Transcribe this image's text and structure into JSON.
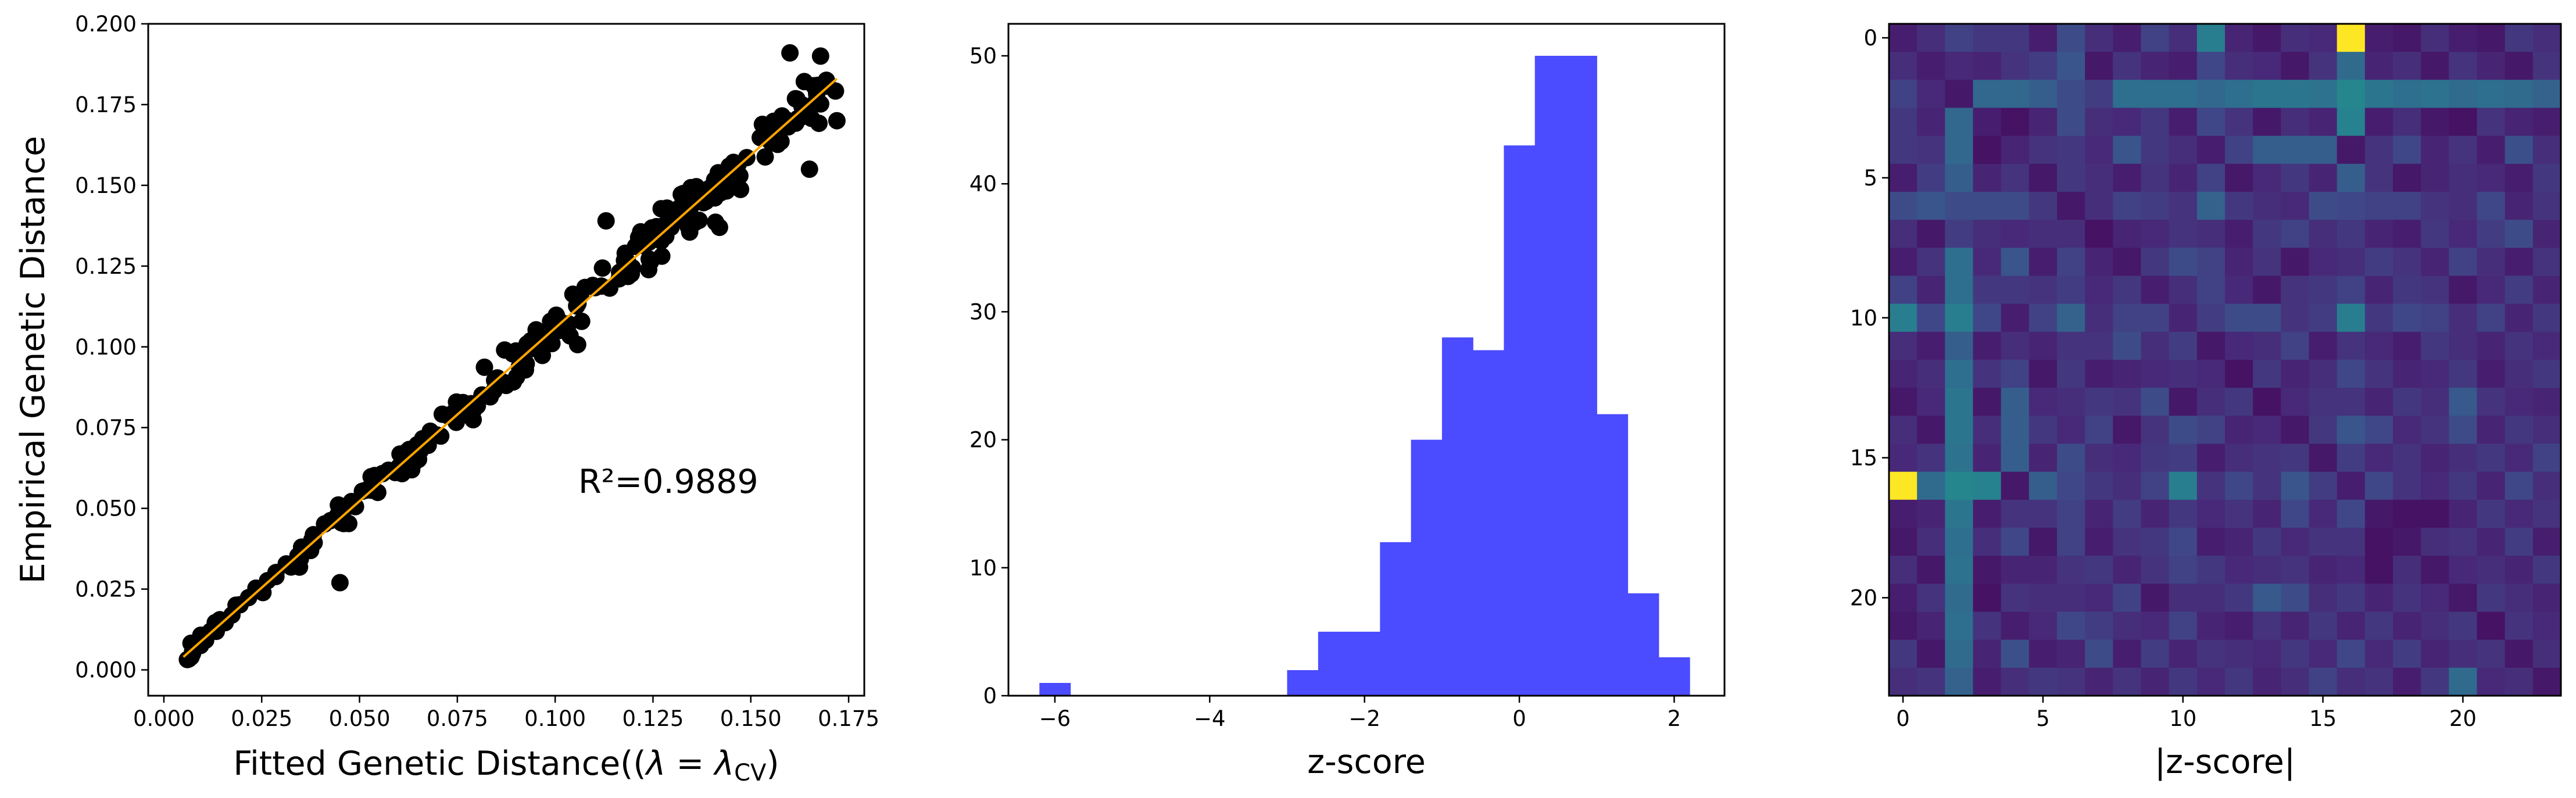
{
  "chart_data": [
    {
      "type": "scatter",
      "xlabel": "Fitted Genetic Distance((λ = λ_CV)",
      "xlabel_parts": {
        "prefix": "Fitted Genetic Distance((",
        "lambda": "λ",
        "eq": " = ",
        "lambda2": "λ",
        "sub": "CV",
        "suffix": ")"
      },
      "ylabel": "Empirical Genetic Distance",
      "xlim": [
        -0.004,
        0.179
      ],
      "ylim": [
        -0.008,
        0.2
      ],
      "xticks": [
        0.0,
        0.025,
        0.05,
        0.075,
        0.1,
        0.125,
        0.15,
        0.175
      ],
      "xtick_labels": [
        "0.000",
        "0.025",
        "0.050",
        "0.075",
        "0.100",
        "0.125",
        "0.150",
        "0.175"
      ],
      "yticks": [
        0.0,
        0.025,
        0.05,
        0.075,
        0.1,
        0.125,
        0.15,
        0.175,
        0.2
      ],
      "ytick_labels": [
        "0.000",
        "0.025",
        "0.050",
        "0.075",
        "0.100",
        "0.125",
        "0.150",
        "0.175",
        "0.200"
      ],
      "annotation": "R²=0.9889",
      "fit_line": {
        "x": [
          0.005,
          0.172
        ],
        "y": [
          0.004,
          0.183
        ],
        "color": "#ffa500"
      },
      "point_color": "#000000",
      "n_points": 276
    },
    {
      "type": "bar",
      "subtype": "histogram",
      "xlabel": "z-score",
      "ylabel": "",
      "bin_edges": [
        -6.2,
        -5.8,
        -5.4,
        -5.0,
        -4.6,
        -4.2,
        -3.8,
        -3.4,
        -3.0,
        -2.6,
        -2.2,
        -1.8,
        -1.4,
        -1.0,
        -0.6,
        -0.2,
        0.2,
        0.6,
        1.0,
        1.4,
        1.8,
        2.2
      ],
      "values": [
        1,
        0,
        0,
        0,
        0,
        0,
        0,
        0,
        2,
        5,
        5,
        12,
        20,
        28,
        27,
        43,
        50,
        50,
        22,
        8,
        3
      ],
      "xlim": [
        -6.6,
        2.65
      ],
      "ylim": [
        0,
        52.5
      ],
      "xticks": [
        -6,
        -4,
        -2,
        0,
        2
      ],
      "xtick_labels": [
        "−6",
        "−4",
        "−2",
        "0",
        "2"
      ],
      "yticks": [
        0,
        10,
        20,
        30,
        40,
        50
      ],
      "ytick_labels": [
        "0",
        "10",
        "20",
        "30",
        "40",
        "50"
      ],
      "bar_color": "#4b4bff"
    },
    {
      "type": "heatmap",
      "xlabel": "|z-score|",
      "rows": 24,
      "cols": 24,
      "colormap": "viridis",
      "vmin": 0,
      "vmax": 6.1,
      "xticks": [
        0,
        5,
        10,
        15,
        20
      ],
      "xtick_labels": [
        "0",
        "5",
        "10",
        "15",
        "20"
      ],
      "yticks": [
        0,
        5,
        10,
        15,
        20
      ],
      "ytick_labels": [
        "0",
        "5",
        "10",
        "15",
        "20"
      ],
      "matrix": [
        [
          0.5,
          0.8,
          1.2,
          1.0,
          1.0,
          0.5,
          1.4,
          0.8,
          0.5,
          1.2,
          0.8,
          2.6,
          0.6,
          0.4,
          0.8,
          0.7,
          6.1,
          0.5,
          0.4,
          0.8,
          0.5,
          0.4,
          1.0,
          0.8
        ],
        [
          0.8,
          0.5,
          0.7,
          0.6,
          0.9,
          1.1,
          1.6,
          0.4,
          0.9,
          0.6,
          0.5,
          1.3,
          0.8,
          0.7,
          0.4,
          0.9,
          2.1,
          0.6,
          0.8,
          0.4,
          0.9,
          0.6,
          0.4,
          0.9
        ],
        [
          1.2,
          0.7,
          0.4,
          2.0,
          2.0,
          1.8,
          1.4,
          1.1,
          2.2,
          2.2,
          2.2,
          2.0,
          2.2,
          2.4,
          2.4,
          2.3,
          2.8,
          2.4,
          2.2,
          2.3,
          2.1,
          2.2,
          2.1,
          1.9
        ],
        [
          1.0,
          0.6,
          2.0,
          0.5,
          0.3,
          0.6,
          1.4,
          0.8,
          0.7,
          1.0,
          0.5,
          1.3,
          0.9,
          0.4,
          0.8,
          0.6,
          2.7,
          0.5,
          0.8,
          0.4,
          0.3,
          0.9,
          0.6,
          0.5
        ],
        [
          1.0,
          0.9,
          2.0,
          0.3,
          0.6,
          0.9,
          1.0,
          0.7,
          1.6,
          1.0,
          0.8,
          0.5,
          1.2,
          1.8,
          1.8,
          1.8,
          0.4,
          0.9,
          1.3,
          0.6,
          0.9,
          0.5,
          1.5,
          0.8
        ],
        [
          0.5,
          1.1,
          1.8,
          0.6,
          0.9,
          0.4,
          1.0,
          0.8,
          0.5,
          0.9,
          0.6,
          1.2,
          0.4,
          0.7,
          1.0,
          0.6,
          1.8,
          0.9,
          0.4,
          0.6,
          0.8,
          0.7,
          0.5,
          1.0
        ],
        [
          1.4,
          1.6,
          1.4,
          1.4,
          1.4,
          1.0,
          0.4,
          0.8,
          1.2,
          1.1,
          0.9,
          1.9,
          1.0,
          0.8,
          0.7,
          1.4,
          1.3,
          1.2,
          1.2,
          0.9,
          0.8,
          1.3,
          0.6,
          0.9
        ],
        [
          0.8,
          0.4,
          1.1,
          0.8,
          0.7,
          0.8,
          0.8,
          0.3,
          0.6,
          0.7,
          0.9,
          0.8,
          0.5,
          1.0,
          1.2,
          0.8,
          1.0,
          0.6,
          0.5,
          1.0,
          0.7,
          1.1,
          1.4,
          0.6
        ],
        [
          0.5,
          0.9,
          2.2,
          0.7,
          1.6,
          0.5,
          1.2,
          0.6,
          0.4,
          1.0,
          1.4,
          1.2,
          0.6,
          0.9,
          0.4,
          0.7,
          0.8,
          1.1,
          0.9,
          0.6,
          1.2,
          0.8,
          0.5,
          0.9
        ],
        [
          1.2,
          0.6,
          2.2,
          1.0,
          1.0,
          0.9,
          1.1,
          0.7,
          1.0,
          0.5,
          0.8,
          1.2,
          0.7,
          0.4,
          0.9,
          1.0,
          1.2,
          0.6,
          1.0,
          0.9,
          0.4,
          0.7,
          1.1,
          0.6
        ],
        [
          2.6,
          1.3,
          2.6,
          1.3,
          0.5,
          1.2,
          1.9,
          0.8,
          1.2,
          1.2,
          0.6,
          1.1,
          1.4,
          1.4,
          0.9,
          1.1,
          2.6,
          1.0,
          1.3,
          1.2,
          0.8,
          1.2,
          0.6,
          1.0
        ],
        [
          0.8,
          0.5,
          1.8,
          0.5,
          0.8,
          0.6,
          0.9,
          0.9,
          1.4,
          0.8,
          1.1,
          0.4,
          0.7,
          0.8,
          1.2,
          0.5,
          0.9,
          0.7,
          0.5,
          1.0,
          0.8,
          0.6,
          0.9,
          0.7
        ],
        [
          0.6,
          0.8,
          2.2,
          0.9,
          1.2,
          0.4,
          1.0,
          0.5,
          0.6,
          0.7,
          0.8,
          0.7,
          0.3,
          1.0,
          0.6,
          0.8,
          1.3,
          0.9,
          0.6,
          0.7,
          1.0,
          0.5,
          0.8,
          1.0
        ],
        [
          0.4,
          0.7,
          2.4,
          0.4,
          1.8,
          0.7,
          0.8,
          1.0,
          0.9,
          1.4,
          0.4,
          0.8,
          1.0,
          0.3,
          0.7,
          0.9,
          0.9,
          0.6,
          1.0,
          0.8,
          1.7,
          0.9,
          0.7,
          0.6
        ],
        [
          0.8,
          0.4,
          2.4,
          0.8,
          1.8,
          1.0,
          0.7,
          1.2,
          0.4,
          0.9,
          1.4,
          1.2,
          0.6,
          0.7,
          0.4,
          1.0,
          1.6,
          1.3,
          0.7,
          0.9,
          1.4,
          0.6,
          1.0,
          0.8
        ],
        [
          0.7,
          0.9,
          2.3,
          0.6,
          1.8,
          0.6,
          1.4,
          0.8,
          0.7,
          1.0,
          1.1,
          0.5,
          0.8,
          0.9,
          1.0,
          0.4,
          1.1,
          0.7,
          0.9,
          0.6,
          0.8,
          1.0,
          0.7,
          1.2
        ],
        [
          6.1,
          2.1,
          2.8,
          2.7,
          0.4,
          1.8,
          1.3,
          1.0,
          0.8,
          1.2,
          2.6,
          0.9,
          1.3,
          0.9,
          1.6,
          1.1,
          0.5,
          1.3,
          0.9,
          0.7,
          1.0,
          0.6,
          1.3,
          0.8
        ],
        [
          0.5,
          0.6,
          2.4,
          0.5,
          0.9,
          0.9,
          1.2,
          0.6,
          1.1,
          0.6,
          1.0,
          0.7,
          0.9,
          0.6,
          1.3,
          0.7,
          1.3,
          0.4,
          0.3,
          0.3,
          0.6,
          1.0,
          0.7,
          0.9
        ],
        [
          0.4,
          0.8,
          2.2,
          0.8,
          1.3,
          0.4,
          1.2,
          0.5,
          0.9,
          1.0,
          1.3,
          0.5,
          0.6,
          1.0,
          0.7,
          0.9,
          0.9,
          0.3,
          0.4,
          0.8,
          0.9,
          0.6,
          1.1,
          0.5
        ],
        [
          0.8,
          0.4,
          2.3,
          0.4,
          0.6,
          0.6,
          0.9,
          1.0,
          0.6,
          0.9,
          1.2,
          1.0,
          0.7,
          0.8,
          0.9,
          0.6,
          0.7,
          0.3,
          0.8,
          0.4,
          0.7,
          0.8,
          0.6,
          1.0
        ],
        [
          0.5,
          0.9,
          2.1,
          0.3,
          0.9,
          0.8,
          0.8,
          0.7,
          1.2,
          0.4,
          0.8,
          0.8,
          1.0,
          1.7,
          1.4,
          0.8,
          1.0,
          0.6,
          0.9,
          0.7,
          0.4,
          1.0,
          0.8,
          0.6
        ],
        [
          0.4,
          0.6,
          2.2,
          0.9,
          0.5,
          0.7,
          1.3,
          1.1,
          0.8,
          0.7,
          1.2,
          0.6,
          0.5,
          0.9,
          0.6,
          1.0,
          0.6,
          1.0,
          0.6,
          0.8,
          1.0,
          0.3,
          0.9,
          0.7
        ],
        [
          1.0,
          0.4,
          2.1,
          0.6,
          1.5,
          0.5,
          0.6,
          1.4,
          0.5,
          1.1,
          0.6,
          0.9,
          0.8,
          0.7,
          1.0,
          0.7,
          1.3,
          0.7,
          1.1,
          0.6,
          0.8,
          0.9,
          0.4,
          0.8
        ],
        [
          0.8,
          0.9,
          1.9,
          0.5,
          0.8,
          1.0,
          0.9,
          0.6,
          0.9,
          0.6,
          1.0,
          0.7,
          1.0,
          0.6,
          0.8,
          1.2,
          0.8,
          0.9,
          0.5,
          1.0,
          2.1,
          0.7,
          0.8,
          0.4
        ]
      ]
    }
  ]
}
